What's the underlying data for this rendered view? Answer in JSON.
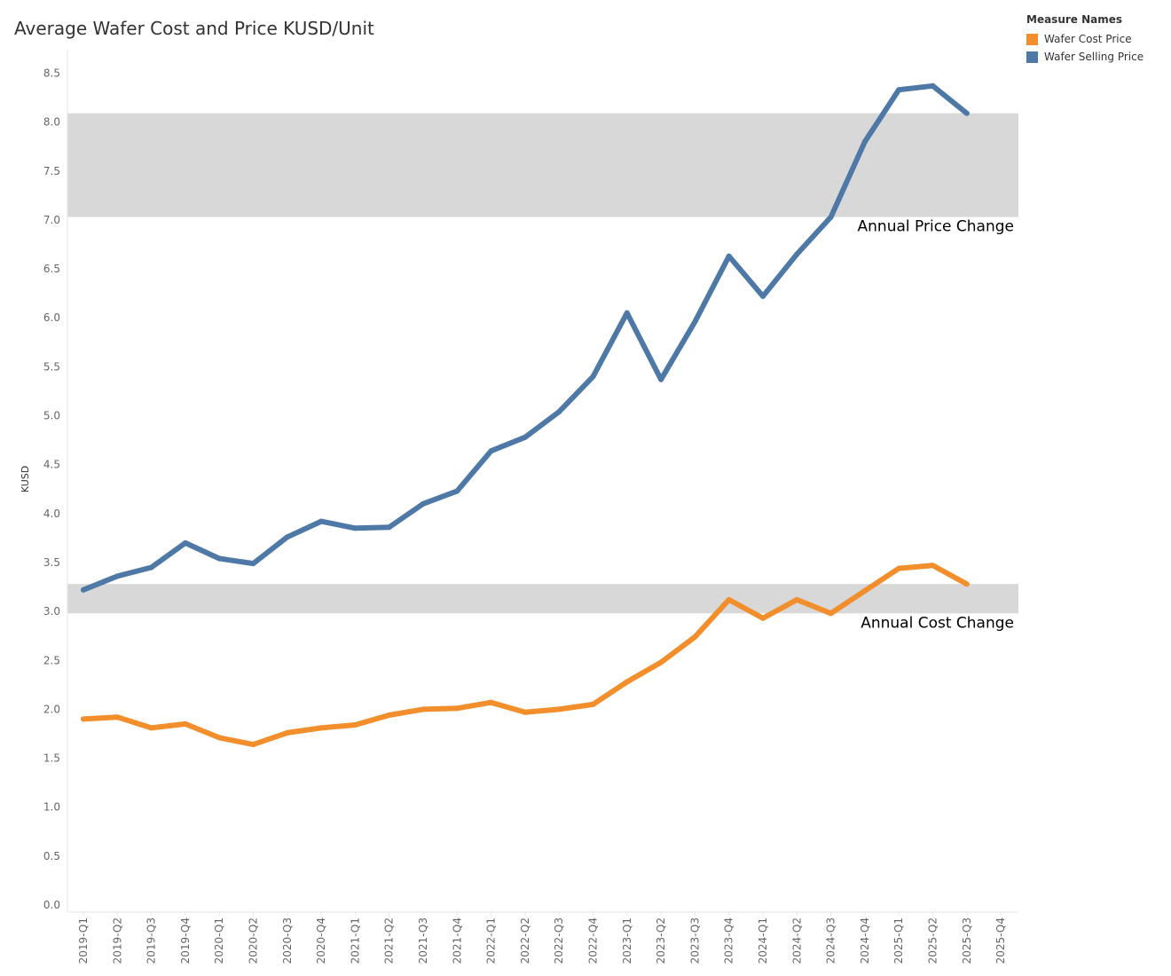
{
  "chart_data": {
    "type": "line",
    "title": "Average Wafer Cost and Price KUSD/Unit",
    "ylabel": "KUSD",
    "xlabel": "",
    "ylim": [
      0,
      8.8
    ],
    "yticks": [
      0.0,
      0.5,
      1.0,
      1.5,
      2.0,
      2.5,
      3.0,
      3.5,
      4.0,
      4.5,
      5.0,
      5.5,
      6.0,
      6.5,
      7.0,
      7.5,
      8.0,
      8.5
    ],
    "ytick_labels": [
      "0.0",
      "0.5",
      "1.0",
      "1.5",
      "2.0",
      "2.5",
      "3.0",
      "3.5",
      "4.0",
      "4.5",
      "5.0",
      "5.5",
      "6.0",
      "6.5",
      "7.0",
      "7.5",
      "8.0",
      "8.5"
    ],
    "categories": [
      "2019-Q1",
      "2019-Q2",
      "2019-Q3",
      "2019-Q4",
      "2020-Q1",
      "2020-Q2",
      "2020-Q3",
      "2020-Q4",
      "2021-Q1",
      "2021-Q2",
      "2021-Q3",
      "2021-Q4",
      "2022-Q1",
      "2022-Q2",
      "2022-Q3",
      "2022-Q4",
      "2023-Q1",
      "2023-Q2",
      "2023-Q3",
      "2023-Q4",
      "2024-Q1",
      "2024-Q2",
      "2024-Q3",
      "2024-Q4",
      "2025-Q1",
      "2025-Q2",
      "2025-Q3",
      "2025-Q4"
    ],
    "grid": false,
    "legend": {
      "title": "Measure Names",
      "placement": "top-right"
    },
    "series": [
      {
        "name": "Wafer Cost Price",
        "color": "#f28e2b",
        "values": [
          1.9,
          1.92,
          1.81,
          1.85,
          1.71,
          1.64,
          1.76,
          1.81,
          1.84,
          1.94,
          2.0,
          2.01,
          2.07,
          1.97,
          2.0,
          2.05,
          2.28,
          2.48,
          2.74,
          3.12,
          2.93,
          3.12,
          2.98,
          3.21,
          3.44,
          3.47,
          3.28,
          null
        ]
      },
      {
        "name": "Wafer Selling Price",
        "color": "#4e79a7",
        "values": [
          3.22,
          3.36,
          3.45,
          3.7,
          3.54,
          3.49,
          3.76,
          3.92,
          3.85,
          3.86,
          4.1,
          4.23,
          4.64,
          4.78,
          5.04,
          5.4,
          6.05,
          5.37,
          5.96,
          6.63,
          6.22,
          6.65,
          7.03,
          7.8,
          8.33,
          8.37,
          8.09,
          null
        ]
      }
    ],
    "bands": [
      {
        "label": "Annual Price Change",
        "from": 7.03,
        "to": 8.09,
        "color": "#d8d8d8"
      },
      {
        "label": "Annual Cost Change",
        "from": 2.98,
        "to": 3.28,
        "color": "#d8d8d8"
      }
    ]
  }
}
